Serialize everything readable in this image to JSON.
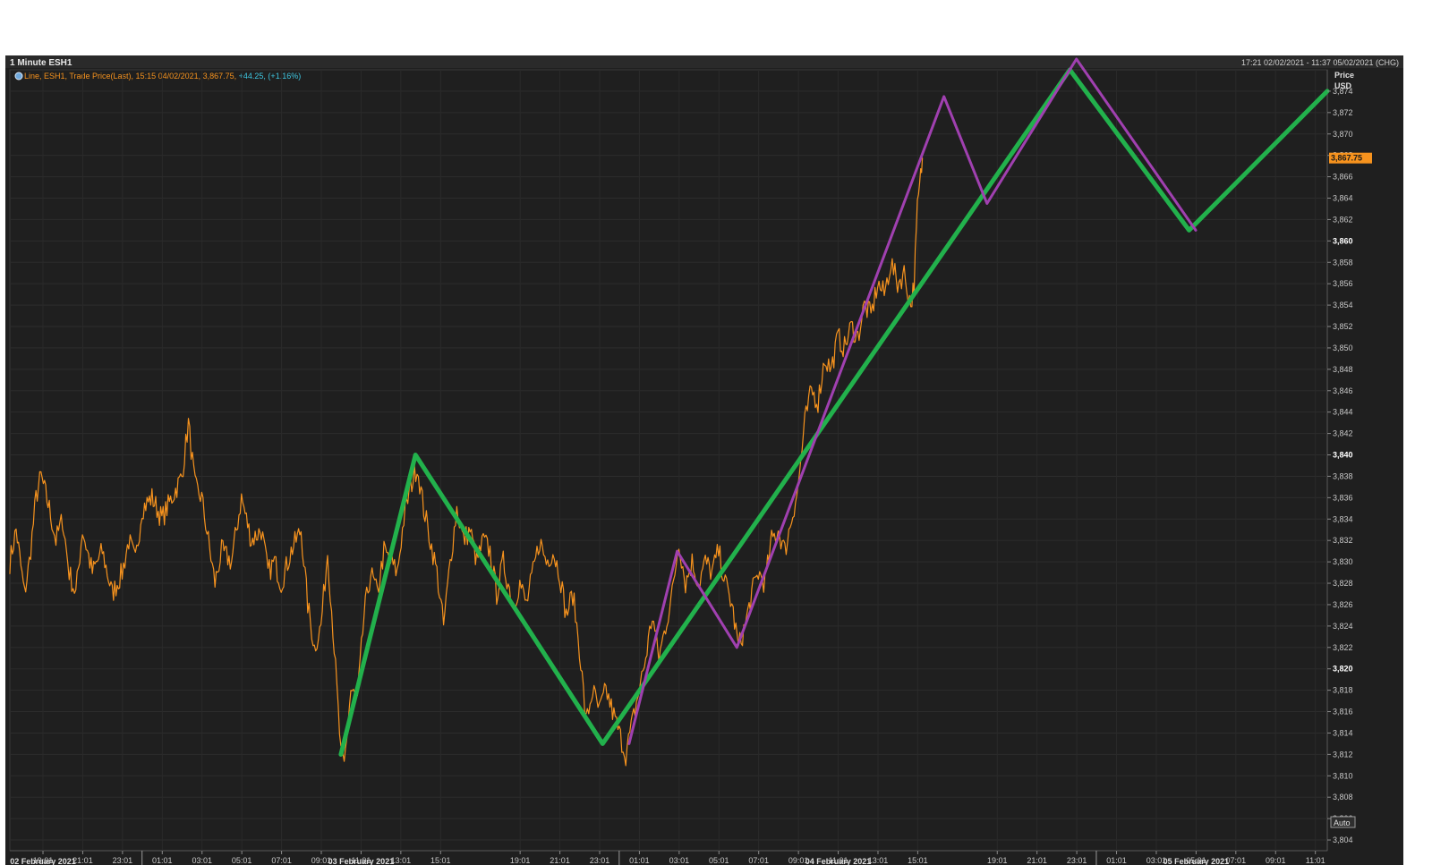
{
  "window": {
    "title": "1 Minute ESH1",
    "date_range": "17:21 02/02/2021 - 11:37 05/02/2021 (CHG)"
  },
  "legend": {
    "icon": "globe-icon",
    "text": "Line, ESH1, Trade Price(Last),  15:15 04/02/2021, 3,867.75, ",
    "change": "+44.25, (+1.16%)"
  },
  "axis": {
    "price_header": "Price",
    "currency": "USD",
    "current_price_label": "3,867.75",
    "auto_button": "Auto"
  },
  "colors": {
    "background": "#1f1f1f",
    "price_line": "#f7931e",
    "green_overlay": "#22b14c",
    "purple_overlay": "#a040b0",
    "cyan_text": "#3ec6e0",
    "grid": "#2c2c2c"
  },
  "chart_data": {
    "type": "line",
    "title": "1 Minute ESH1",
    "ylabel": "Price USD",
    "ylim": [
      3803,
      3876
    ],
    "yticks": [
      3804,
      3806,
      3808,
      3810,
      3812,
      3814,
      3816,
      3818,
      3820,
      3822,
      3824,
      3826,
      3828,
      3830,
      3832,
      3834,
      3836,
      3838,
      3840,
      3842,
      3844,
      3846,
      3848,
      3850,
      3852,
      3854,
      3856,
      3858,
      3860,
      3862,
      3864,
      3866,
      3868,
      3870,
      3872,
      3874
    ],
    "ytick_labels": [
      "3,804",
      "3,806",
      "3,808",
      "3,810",
      "3,812",
      "3,814",
      "3,816",
      "3,818",
      "3,820",
      "3,822",
      "3,824",
      "3,826",
      "3,828",
      "3,830",
      "3,832",
      "3,834",
      "3,836",
      "3,838",
      "3,840",
      "3,842",
      "3,844",
      "3,846",
      "3,848",
      "3,850",
      "3,852",
      "3,854",
      "3,856",
      "3,858",
      "3,860",
      "3,862",
      "3,864",
      "3,866",
      "3,868",
      "3,870",
      "3,872",
      "3,874"
    ],
    "xlim": [
      "02/02/2021 17:21",
      "05/02/2021 11:37"
    ],
    "xticks": [
      "02/02/2021 19:01",
      "02/02/2021 21:01",
      "02/02/2021 23:01",
      "03/02/2021 01:01",
      "03/02/2021 03:01",
      "03/02/2021 05:01",
      "03/02/2021 07:01",
      "03/02/2021 09:01",
      "03/02/2021 11:01",
      "03/02/2021 13:01",
      "03/02/2021 15:01",
      "03/02/2021 19:01",
      "03/02/2021 21:01",
      "03/02/2021 23:01",
      "04/02/2021 01:01",
      "04/02/2021 03:01",
      "04/02/2021 05:01",
      "04/02/2021 07:01",
      "04/02/2021 09:01",
      "04/02/2021 11:01",
      "04/02/2021 13:01",
      "04/02/2021 15:01",
      "04/02/2021 19:01",
      "04/02/2021 21:01",
      "04/02/2021 23:01",
      "05/02/2021 01:01",
      "05/02/2021 03:01",
      "05/02/2021 05:01",
      "05/02/2021 07:01",
      "05/02/2021 09:01",
      "05/02/2021 11:01"
    ],
    "xtick_labels": [
      "19:01",
      "21:01",
      "23:01",
      "01:01",
      "03:01",
      "05:01",
      "07:01",
      "09:01",
      "11:01",
      "13:01",
      "15:01",
      "19:01",
      "21:01",
      "23:01",
      "01:01",
      "03:01",
      "05:01",
      "07:01",
      "09:01",
      "11:01",
      "13:01",
      "15:01",
      "19:01",
      "21:01",
      "23:01",
      "01:01",
      "03:01",
      "05:01",
      "07:01",
      "09:01",
      "11:01"
    ],
    "date_labels": [
      {
        "label": "02 February 2021",
        "at": "02/02/2021 19:01"
      },
      {
        "label": "03 February 2021",
        "at": "03/02/2021 11:01"
      },
      {
        "label": "04 February 2021",
        "at": "04/02/2021 11:01"
      },
      {
        "label": "05 February 2021",
        "at": "05/02/2021 05:01"
      }
    ],
    "date_separators": [
      "03/02/2021 00:00",
      "04/02/2021 00:00",
      "05/02/2021 00:00"
    ],
    "grid": true,
    "series": [
      {
        "name": "ESH1 Trade Price(Last)",
        "color": "#f7931e",
        "points": [
          [
            "02/02/2021 17:21",
            3830
          ],
          [
            "02/02/2021 17:40",
            3833
          ],
          [
            "02/02/2021 18:05",
            3827
          ],
          [
            "02/02/2021 18:20",
            3830
          ],
          [
            "02/02/2021 18:40",
            3836
          ],
          [
            "02/02/2021 18:55",
            3838
          ],
          [
            "02/02/2021 19:20",
            3835
          ],
          [
            "02/02/2021 19:40",
            3832
          ],
          [
            "02/02/2021 20:00",
            3834
          ],
          [
            "02/02/2021 20:20",
            3829
          ],
          [
            "02/02/2021 20:40",
            3827
          ],
          [
            "02/02/2021 21:00",
            3833
          ],
          [
            "02/02/2021 21:30",
            3829
          ],
          [
            "02/02/2021 22:00",
            3831
          ],
          [
            "02/02/2021 22:30",
            3827
          ],
          [
            "02/02/2021 23:00",
            3829
          ],
          [
            "02/02/2021 23:20",
            3832
          ],
          [
            "02/02/2021 23:40",
            3830
          ],
          [
            "03/02/2021 00:00",
            3835
          ],
          [
            "03/02/2021 00:30",
            3836
          ],
          [
            "03/02/2021 01:00",
            3834
          ],
          [
            "03/02/2021 01:30",
            3836
          ],
          [
            "03/02/2021 02:00",
            3838
          ],
          [
            "03/02/2021 02:20",
            3843
          ],
          [
            "03/02/2021 02:40",
            3837
          ],
          [
            "03/02/2021 03:00",
            3836
          ],
          [
            "03/02/2021 03:20",
            3832
          ],
          [
            "03/02/2021 03:40",
            3828
          ],
          [
            "03/02/2021 04:00",
            3831
          ],
          [
            "03/02/2021 04:30",
            3830
          ],
          [
            "03/02/2021 05:00",
            3836
          ],
          [
            "03/02/2021 05:30",
            3832
          ],
          [
            "03/02/2021 06:00",
            3833
          ],
          [
            "03/02/2021 06:20",
            3829
          ],
          [
            "03/02/2021 06:40",
            3830
          ],
          [
            "03/02/2021 07:00",
            3828
          ],
          [
            "03/02/2021 07:30",
            3831
          ],
          [
            "03/02/2021 08:00",
            3833
          ],
          [
            "03/02/2021 08:20",
            3826
          ],
          [
            "03/02/2021 08:40",
            3822
          ],
          [
            "03/02/2021 09:00",
            3824
          ],
          [
            "03/02/2021 09:20",
            3831
          ],
          [
            "03/02/2021 09:40",
            3822
          ],
          [
            "03/02/2021 10:00",
            3812
          ],
          [
            "03/02/2021 10:10",
            3811
          ],
          [
            "03/02/2021 10:30",
            3818
          ],
          [
            "03/02/2021 10:50",
            3817
          ],
          [
            "03/02/2021 11:10",
            3825
          ],
          [
            "03/02/2021 11:30",
            3829
          ],
          [
            "03/02/2021 11:50",
            3827
          ],
          [
            "03/02/2021 12:10",
            3831
          ],
          [
            "03/02/2021 12:30",
            3830
          ],
          [
            "03/02/2021 12:50",
            3829
          ],
          [
            "03/02/2021 13:10",
            3834
          ],
          [
            "03/02/2021 13:30",
            3837
          ],
          [
            "03/02/2021 13:50",
            3839
          ],
          [
            "03/02/2021 14:10",
            3835
          ],
          [
            "03/02/2021 14:30",
            3832
          ],
          [
            "03/02/2021 14:50",
            3829
          ],
          [
            "03/02/2021 15:10",
            3824
          ],
          [
            "03/02/2021 15:30",
            3830
          ],
          [
            "03/02/2021 15:50",
            3835
          ],
          [
            "03/02/2021 16:10",
            3832
          ],
          [
            "03/02/2021 16:30",
            3833
          ],
          [
            "03/02/2021 16:50",
            3830
          ],
          [
            "03/02/2021 17:10",
            3832
          ],
          [
            "03/02/2021 17:30",
            3831
          ],
          [
            "03/02/2021 17:50",
            3827
          ],
          [
            "03/02/2021 18:10",
            3830
          ],
          [
            "03/02/2021 18:40",
            3826
          ],
          [
            "03/02/2021 19:00",
            3828
          ],
          [
            "03/02/2021 19:20",
            3826
          ],
          [
            "03/02/2021 19:40",
            3829
          ],
          [
            "03/02/2021 20:00",
            3832
          ],
          [
            "03/02/2021 20:20",
            3830
          ],
          [
            "03/02/2021 20:40",
            3831
          ],
          [
            "03/02/2021 21:00",
            3829
          ],
          [
            "03/02/2021 21:20",
            3825
          ],
          [
            "03/02/2021 21:40",
            3827
          ],
          [
            "03/02/2021 22:00",
            3822
          ],
          [
            "03/02/2021 22:20",
            3815
          ],
          [
            "03/02/2021 22:40",
            3818
          ],
          [
            "03/02/2021 23:00",
            3816
          ],
          [
            "03/02/2021 23:20",
            3818
          ],
          [
            "03/02/2021 23:40",
            3816
          ],
          [
            "04/02/2021 00:00",
            3814
          ],
          [
            "04/02/2021 00:20",
            3812
          ],
          [
            "04/02/2021 00:40",
            3815
          ],
          [
            "04/02/2021 01:00",
            3818
          ],
          [
            "04/02/2021 01:20",
            3821
          ],
          [
            "04/02/2021 01:40",
            3825
          ],
          [
            "04/02/2021 02:00",
            3821
          ],
          [
            "04/02/2021 02:20",
            3824
          ],
          [
            "04/02/2021 02:40",
            3827
          ],
          [
            "04/02/2021 03:00",
            3832
          ],
          [
            "04/02/2021 03:20",
            3828
          ],
          [
            "04/02/2021 03:40",
            3830
          ],
          [
            "04/02/2021 04:00",
            3828
          ],
          [
            "04/02/2021 04:20",
            3830
          ],
          [
            "04/02/2021 04:40",
            3829
          ],
          [
            "04/02/2021 05:00",
            3831
          ],
          [
            "04/02/2021 05:20",
            3828
          ],
          [
            "04/02/2021 05:40",
            3826
          ],
          [
            "04/02/2021 06:00",
            3822
          ],
          [
            "04/02/2021 06:20",
            3824
          ],
          [
            "04/02/2021 06:40",
            3827
          ],
          [
            "04/02/2021 07:00",
            3829
          ],
          [
            "04/02/2021 07:20",
            3828
          ],
          [
            "04/02/2021 07:40",
            3832
          ],
          [
            "04/02/2021 08:00",
            3833
          ],
          [
            "04/02/2021 08:20",
            3831
          ],
          [
            "04/02/2021 08:40",
            3834
          ],
          [
            "04/02/2021 09:00",
            3837
          ],
          [
            "04/02/2021 09:20",
            3843
          ],
          [
            "04/02/2021 09:40",
            3846
          ],
          [
            "04/02/2021 10:00",
            3845
          ],
          [
            "04/02/2021 10:20",
            3849
          ],
          [
            "04/02/2021 10:40",
            3848
          ],
          [
            "04/02/2021 11:00",
            3851
          ],
          [
            "04/02/2021 11:20",
            3850
          ],
          [
            "04/02/2021 11:40",
            3852
          ],
          [
            "04/02/2021 12:00",
            3851
          ],
          [
            "04/02/2021 12:20",
            3854
          ],
          [
            "04/02/2021 12:40",
            3853
          ],
          [
            "04/02/2021 13:00",
            3856
          ],
          [
            "04/02/2021 13:20",
            3855
          ],
          [
            "04/02/2021 13:40",
            3858
          ],
          [
            "04/02/2021 14:00",
            3856
          ],
          [
            "04/02/2021 14:20",
            3857
          ],
          [
            "04/02/2021 14:40",
            3854
          ],
          [
            "04/02/2021 14:50",
            3856
          ],
          [
            "04/02/2021 15:00",
            3863
          ],
          [
            "04/02/2021 15:10",
            3866
          ],
          [
            "04/02/2021 15:15",
            3867.75
          ]
        ]
      },
      {
        "name": "Green overlay",
        "color": "#22b14c",
        "points": [
          [
            "03/02/2021 10:00",
            3812
          ],
          [
            "03/02/2021 13:45",
            3840
          ],
          [
            "03/02/2021 23:10",
            3813
          ],
          [
            "04/02/2021 22:40",
            3876
          ],
          [
            "05/02/2021 04:40",
            3861
          ],
          [
            "05/02/2021 11:37",
            3874
          ]
        ]
      },
      {
        "name": "Purple overlay",
        "color": "#a040b0",
        "points": [
          [
            "04/02/2021 00:30",
            3813
          ],
          [
            "04/02/2021 02:55",
            3831
          ],
          [
            "04/02/2021 05:55",
            3822
          ],
          [
            "04/02/2021 16:20",
            3873.5
          ],
          [
            "04/02/2021 18:30",
            3863.5
          ],
          [
            "04/02/2021 23:00",
            3877
          ],
          [
            "05/02/2021 05:00",
            3861
          ]
        ]
      }
    ]
  }
}
